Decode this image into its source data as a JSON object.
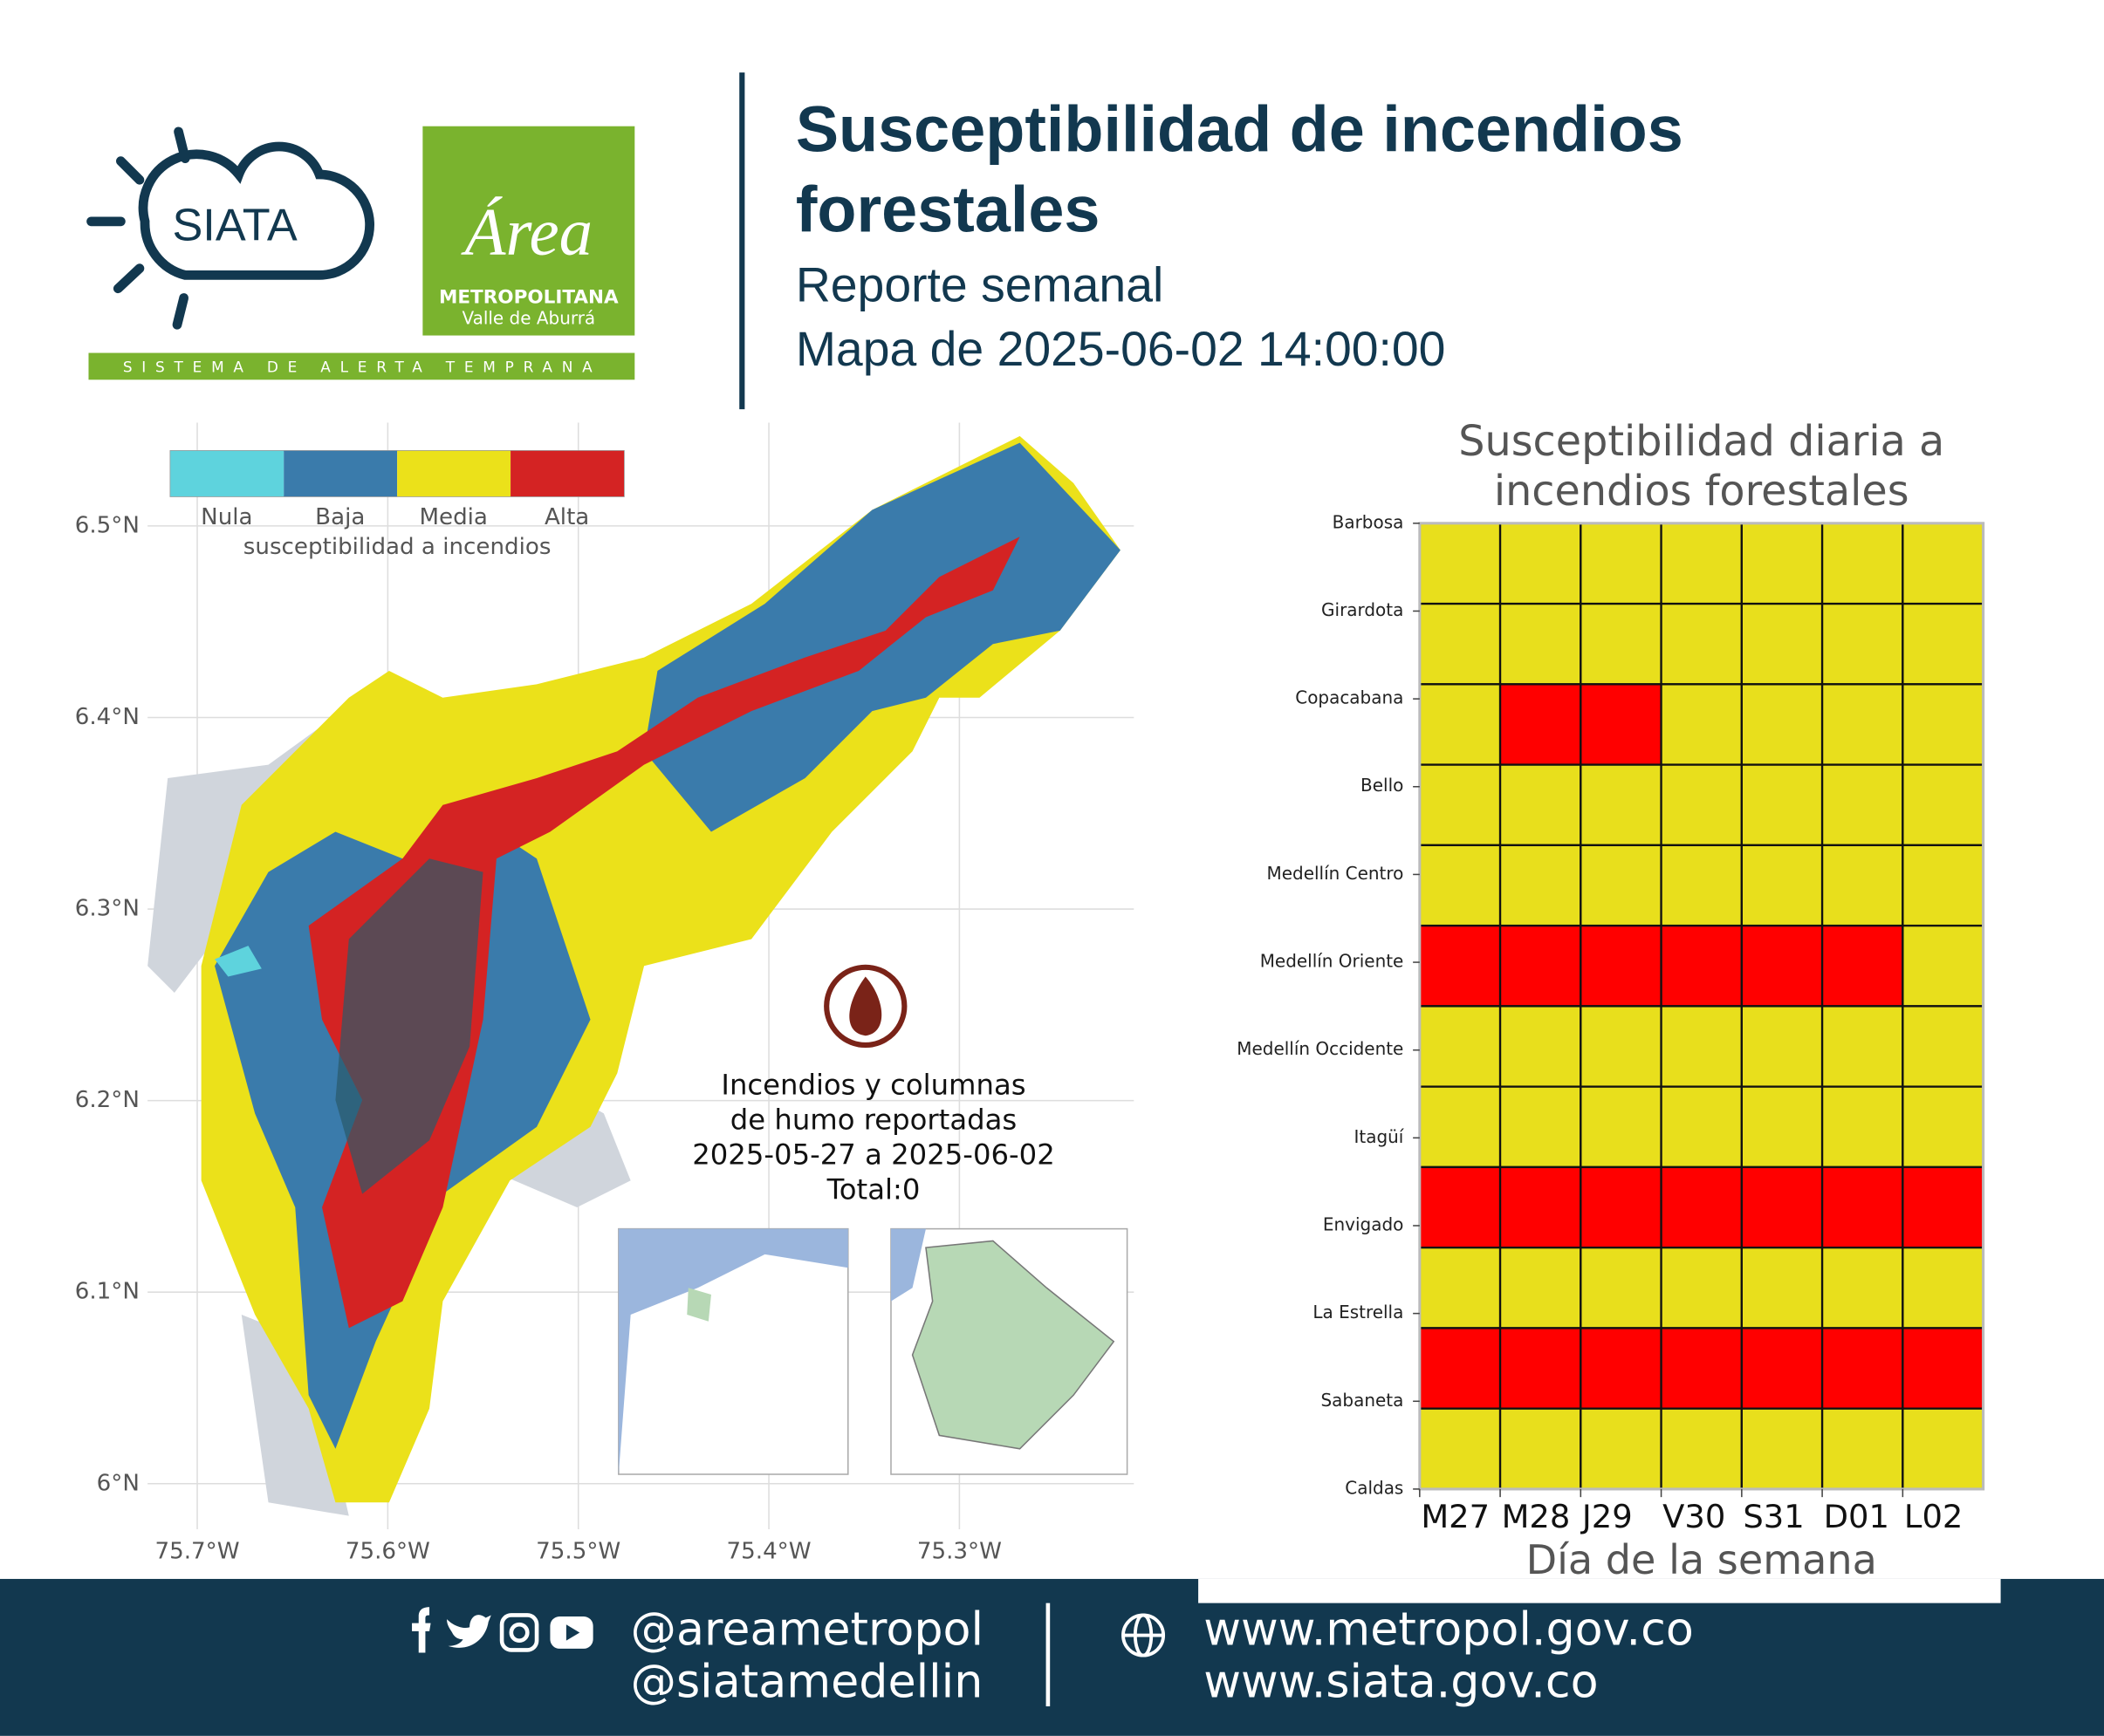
{
  "header": {
    "logo_siata": "SIATA",
    "logo_area": "Área",
    "logo_area_sub1": "METROPOLITANA",
    "logo_area_sub2": "Valle de Aburrá",
    "tagline": "SISTEMA DE ALERTA TEMPRANA",
    "title": [
      "Susceptibilidad de incendios",
      "forestales"
    ],
    "subtitle": "Reporte semanal",
    "map_date": "Mapa de 2025-06-02 14:00:00"
  },
  "map": {
    "legend": {
      "items": [
        {
          "label": "Nula",
          "color": "#5ed3dd"
        },
        {
          "label": "Baja",
          "color": "#3a7bab"
        },
        {
          "label": "Media",
          "color": "#ebe11a"
        },
        {
          "label": "Alta",
          "color": "#d42323"
        }
      ],
      "caption": "susceptibilidad a incendios"
    },
    "yticks": [
      "6.5°N",
      "6.4°N",
      "6.3°N",
      "6.2°N",
      "6.1°N",
      "6°N"
    ],
    "xticks": [
      "75.7°W",
      "75.6°W",
      "75.5°W",
      "75.4°W",
      "75.3°W"
    ],
    "annotation": [
      "Incendios y columnas",
      "de humo reportadas",
      "2025-05-27 a 2025-06-02",
      "Total:0"
    ]
  },
  "chart_data": {
    "type": "heatmap",
    "title": [
      "Susceptibilidad diaria a",
      "incendios forestales"
    ],
    "x_label": "Día de la semana",
    "categories": [
      "M27",
      "M28",
      "J29",
      "V30",
      "S31",
      "D01",
      "L02"
    ],
    "rows": [
      "Barbosa",
      "Girardota",
      "Copacabana",
      "Bello",
      "Medellín Centro",
      "Medellín Oriente",
      "Medellín Occidente",
      "Itagüí",
      "Envigado",
      "La Estrella",
      "Sabaneta",
      "Caldas"
    ],
    "cell_colors": [
      [
        "#e8df1c",
        "#e8df1c",
        "#e8df1c",
        "#e8df1c",
        "#e8df1c",
        "#e8df1c",
        "#e8df1c"
      ],
      [
        "#e8df1c",
        "#e8df1c",
        "#e8df1c",
        "#e8df1c",
        "#e8df1c",
        "#e8df1c",
        "#e8df1c"
      ],
      [
        "#e8df1c",
        "#ff0000",
        "#ff0000",
        "#e8df1c",
        "#e8df1c",
        "#e8df1c",
        "#e8df1c"
      ],
      [
        "#e8df1c",
        "#e8df1c",
        "#e8df1c",
        "#e8df1c",
        "#e8df1c",
        "#e8df1c",
        "#e8df1c"
      ],
      [
        "#e8df1c",
        "#e8df1c",
        "#e8df1c",
        "#e8df1c",
        "#e8df1c",
        "#e8df1c",
        "#e8df1c"
      ],
      [
        "#ff0000",
        "#ff0000",
        "#ff0000",
        "#ff0000",
        "#ff0000",
        "#ff0000",
        "#e8df1c"
      ],
      [
        "#e8df1c",
        "#e8df1c",
        "#e8df1c",
        "#e8df1c",
        "#e8df1c",
        "#e8df1c",
        "#e8df1c"
      ],
      [
        "#e8df1c",
        "#e8df1c",
        "#e8df1c",
        "#e8df1c",
        "#e8df1c",
        "#e8df1c",
        "#e8df1c"
      ],
      [
        "#ff0000",
        "#ff0000",
        "#ff0000",
        "#ff0000",
        "#ff0000",
        "#ff0000",
        "#ff0000"
      ],
      [
        "#e8df1c",
        "#e8df1c",
        "#e8df1c",
        "#e8df1c",
        "#e8df1c",
        "#e8df1c",
        "#e8df1c"
      ],
      [
        "#ff0000",
        "#ff0000",
        "#ff0000",
        "#ff0000",
        "#ff0000",
        "#ff0000",
        "#ff0000"
      ],
      [
        "#e8df1c",
        "#e8df1c",
        "#e8df1c",
        "#e8df1c",
        "#e8df1c",
        "#e8df1c",
        "#e8df1c"
      ]
    ]
  },
  "footer": {
    "social": [
      "@areametropol",
      "@siatamedellin"
    ],
    "web": [
      "www.metropol.gov.co",
      "www.siata.gov.co"
    ]
  }
}
